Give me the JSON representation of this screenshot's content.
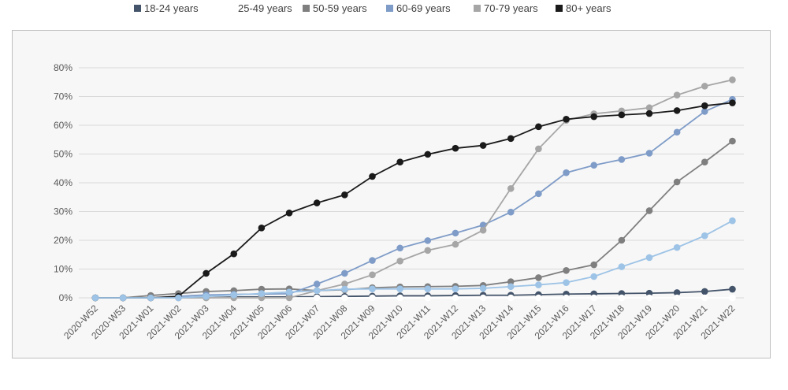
{
  "chart_data": {
    "type": "line",
    "title": "",
    "xlabel": "",
    "ylabel": "",
    "ylim": [
      0,
      80
    ],
    "y_ticks": [
      "0%",
      "10%",
      "20%",
      "30%",
      "40%",
      "50%",
      "60%",
      "70%",
      "80%"
    ],
    "grid": "horizontal",
    "legend_position": "top",
    "categories": [
      "2020-W52",
      "2020-W53",
      "2021-W01",
      "2021-W02",
      "2021-W03",
      "2021-W04",
      "2021-W05",
      "2021-W06",
      "2021-W07",
      "2021-W08",
      "2021-W09",
      "2021-W10",
      "2021-W11",
      "2021-W12",
      "2021-W13",
      "2021-W14",
      "2021-W15",
      "2021-W16",
      "2021-W17",
      "2021-W18",
      "2021-W19",
      "2021-W20",
      "2021-W21",
      "2021-W22"
    ],
    "series": [
      {
        "name": "18-24 years",
        "color": "#44546a",
        "values": [
          0,
          0,
          0,
          0,
          0,
          0.3,
          0.3,
          0.3,
          0.4,
          0.5,
          0.6,
          0.7,
          0.7,
          0.8,
          0.9,
          0.9,
          1.1,
          1.3,
          1.4,
          1.5,
          1.6,
          1.8,
          2.2,
          3.0
        ]
      },
      {
        "name": "25-49 years",
        "color": "#ffffff",
        "values": [
          0,
          0,
          0,
          0,
          0,
          0,
          0,
          0,
          0,
          0,
          0,
          0,
          0,
          0,
          0,
          0,
          0,
          0,
          0,
          0,
          0,
          0,
          0,
          0
        ]
      },
      {
        "name": "50-59 years",
        "color": "#7f7f7f",
        "values": [
          0,
          0,
          0.8,
          1.5,
          2.2,
          2.5,
          3.0,
          3.1,
          2.5,
          2.8,
          3.5,
          3.8,
          3.9,
          4.0,
          4.3,
          5.6,
          7.0,
          9.5,
          11.5,
          20.0,
          30.3,
          40.3,
          47.2,
          54.5
        ]
      },
      {
        "name": "60-69 years",
        "color": "#7f9cc8",
        "values": [
          0,
          0,
          0,
          0.5,
          1.0,
          1.2,
          1.3,
          1.4,
          4.8,
          8.5,
          13.0,
          17.3,
          19.9,
          22.5,
          25.3,
          29.8,
          36.2,
          43.5,
          46.1,
          48.1,
          50.3,
          57.6,
          64.8,
          69.0
        ]
      },
      {
        "name": "70-79 years",
        "color": "#a6a6a6",
        "values": [
          0,
          0,
          0,
          0,
          0,
          0,
          0,
          0,
          2.5,
          4.8,
          8.0,
          12.8,
          16.5,
          18.6,
          23.5,
          38.0,
          51.8,
          61.7,
          64.0,
          65.0,
          66.1,
          70.5,
          73.6,
          75.8
        ]
      },
      {
        "name": "80+ years",
        "color": "#1a1a1a",
        "values": [
          0,
          0,
          0,
          0.5,
          8.5,
          15.3,
          24.3,
          29.5,
          33.0,
          35.8,
          42.2,
          47.2,
          49.9,
          52.0,
          53.0,
          55.4,
          59.5,
          62.1,
          63.0,
          63.6,
          64.1,
          65.1,
          66.8,
          67.8
        ]
      },
      {
        "name": "",
        "color": "#9dc3e6",
        "values": [
          0,
          0,
          0,
          0,
          0.5,
          1.0,
          1.5,
          2.0,
          2.5,
          3.0,
          3.1,
          3.1,
          3.1,
          3.1,
          3.3,
          3.9,
          4.5,
          5.3,
          7.4,
          10.8,
          14.0,
          17.5,
          21.6,
          26.8
        ]
      }
    ]
  }
}
